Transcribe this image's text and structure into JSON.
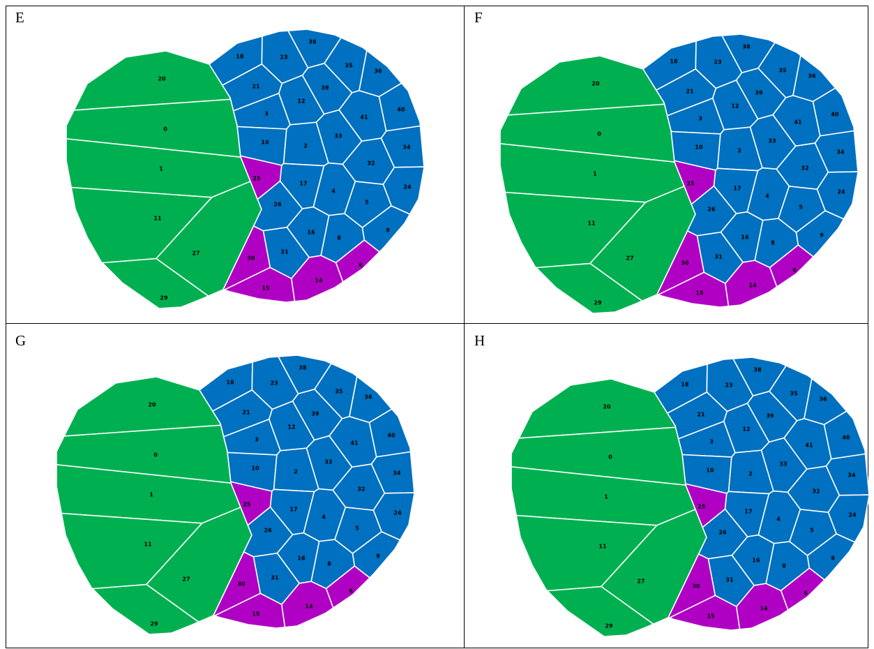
{
  "panels": [
    {
      "label": "E",
      "cells": [
        "20",
        "0",
        "1",
        "11",
        "27",
        "29",
        "25",
        "30",
        "15",
        "14",
        "6",
        "18",
        "23",
        "38",
        "35",
        "36",
        "21",
        "12",
        "39",
        "3",
        "41",
        "40",
        "10",
        "2",
        "33",
        "34",
        "32",
        "24",
        "17",
        "4",
        "26",
        "5",
        "16",
        "8",
        "9",
        "31"
      ]
    },
    {
      "label": "F",
      "cells": [
        "20",
        "0",
        "1",
        "11",
        "27",
        "29",
        "25",
        "30",
        "15",
        "14",
        "6",
        "18",
        "23",
        "38",
        "35",
        "36",
        "21",
        "12",
        "39",
        "3",
        "41",
        "40",
        "10",
        "2",
        "33",
        "34",
        "32",
        "24",
        "17",
        "4",
        "26",
        "5",
        "16",
        "8",
        "9",
        "31"
      ]
    },
    {
      "label": "G",
      "cells": [
        "20",
        "0",
        "1",
        "11",
        "27",
        "29",
        "25",
        "30",
        "15",
        "14",
        "6",
        "18",
        "23",
        "38",
        "35",
        "36",
        "21",
        "12",
        "39",
        "3",
        "41",
        "40",
        "10",
        "2",
        "33",
        "34",
        "32",
        "24",
        "17",
        "4",
        "26",
        "5",
        "16",
        "8",
        "9",
        "31"
      ]
    },
    {
      "label": "H",
      "cells": [
        "20",
        "0",
        "1",
        "11",
        "27",
        "29",
        "25",
        "30",
        "15",
        "14",
        "6",
        "18",
        "23",
        "38",
        "35",
        "36",
        "21",
        "12",
        "39",
        "3",
        "41",
        "40",
        "10",
        "2",
        "33",
        "34",
        "32",
        "24",
        "17",
        "4",
        "26",
        "5",
        "16",
        "8",
        "9",
        "31"
      ]
    }
  ]
}
